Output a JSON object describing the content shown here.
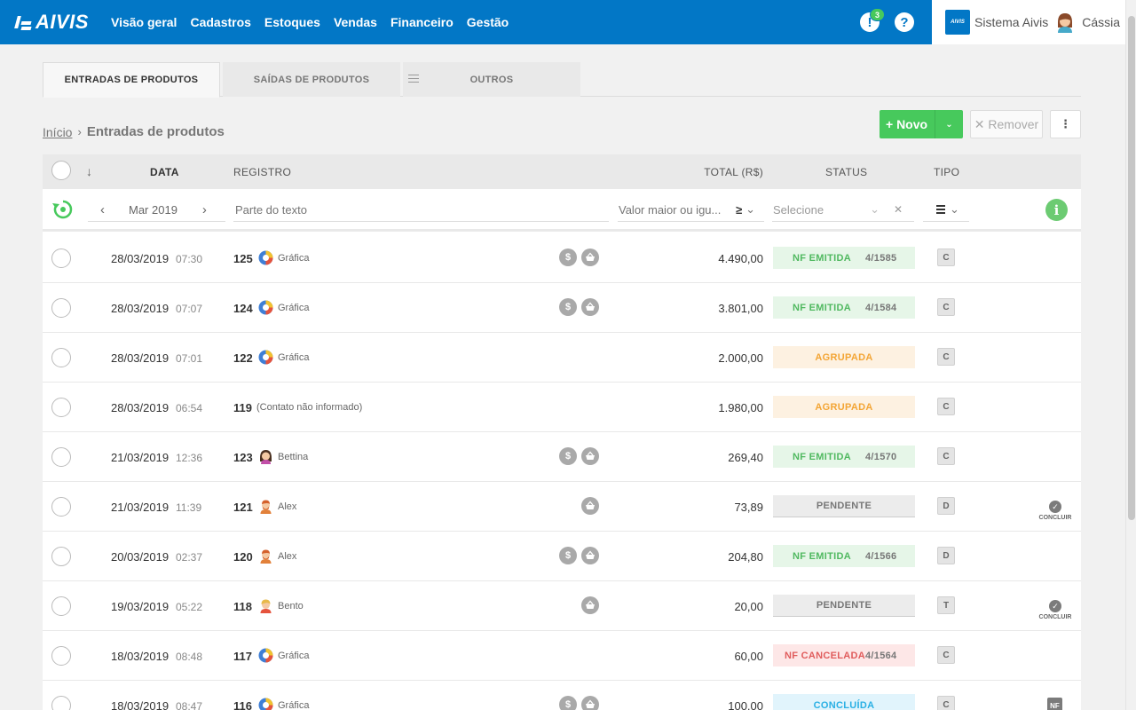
{
  "topbar": {
    "logo": "AIVIS",
    "nav": [
      "Visão geral",
      "Cadastros",
      "Estoques",
      "Vendas",
      "Financeiro",
      "Gestão"
    ],
    "notification_count": "3",
    "help_symbol": "?",
    "alert_symbol": "!",
    "account_logo": "AIVIS",
    "system_name": "Sistema Aivis",
    "user_name": "Cássia"
  },
  "tabs": [
    "ENTRADAS DE PRODUTOS",
    "SAÍDAS DE PRODUTOS",
    "OUTROS"
  ],
  "breadcrumb": {
    "home": "Início",
    "separator": "›",
    "current": "Entradas de produtos"
  },
  "actions": {
    "new_label": "+ Novo",
    "new_caret": "⌄",
    "remove_label": "✕ Remover",
    "more_label": "⋮"
  },
  "columns": {
    "sort_arrow": "↓",
    "date": "DATA",
    "record": "REGISTRO",
    "total": "TOTAL (R$)",
    "status": "STATUS",
    "type": "TIPO"
  },
  "filters": {
    "prev": "‹",
    "month": "Mar 2019",
    "next": "›",
    "text_placeholder": "Parte do texto",
    "value_placeholder": "Valor maior ou igu...",
    "operator": "≥",
    "caret": "⌄",
    "status_placeholder": "Selecione",
    "clear": "✕",
    "info": "i"
  },
  "icons": {
    "dollar": "$",
    "check": "✓",
    "concluir": "CONCLUIR",
    "nf": "NF"
  },
  "rows": [
    {
      "date": "28/03/2019",
      "time": "07:30",
      "number": "125",
      "contact": "Gráfica",
      "contact_icon": "grafica",
      "dollar": true,
      "basket": true,
      "total": "4.490,00",
      "status": "NF EMITIDA",
      "status_type": "emitida",
      "nf": "4/1585",
      "type": "C",
      "action": ""
    },
    {
      "date": "28/03/2019",
      "time": "07:07",
      "number": "124",
      "contact": "Gráfica",
      "contact_icon": "grafica",
      "dollar": true,
      "basket": true,
      "total": "3.801,00",
      "status": "NF EMITIDA",
      "status_type": "emitida",
      "nf": "4/1584",
      "type": "C",
      "action": ""
    },
    {
      "date": "28/03/2019",
      "time": "07:01",
      "number": "122",
      "contact": "Gráfica",
      "contact_icon": "grafica",
      "dollar": false,
      "basket": false,
      "total": "2.000,00",
      "status": "AGRUPADA",
      "status_type": "agrupada",
      "nf": "",
      "type": "C",
      "action": ""
    },
    {
      "date": "28/03/2019",
      "time": "06:54",
      "number": "119",
      "contact": "(Contato não informado)",
      "contact_icon": "",
      "dollar": false,
      "basket": false,
      "total": "1.980,00",
      "status": "AGRUPADA",
      "status_type": "agrupada",
      "nf": "",
      "type": "C",
      "action": ""
    },
    {
      "date": "21/03/2019",
      "time": "12:36",
      "number": "123",
      "contact": "Bettina",
      "contact_icon": "woman",
      "dollar": true,
      "basket": true,
      "total": "269,40",
      "status": "NF EMITIDA",
      "status_type": "emitida",
      "nf": "4/1570",
      "type": "C",
      "action": ""
    },
    {
      "date": "21/03/2019",
      "time": "11:39",
      "number": "121",
      "contact": "Alex",
      "contact_icon": "man-red",
      "dollar": false,
      "basket": true,
      "total": "73,89",
      "status": "PENDENTE",
      "status_type": "pendente",
      "nf": "",
      "type": "D",
      "action": "concluir"
    },
    {
      "date": "20/03/2019",
      "time": "02:37",
      "number": "120",
      "contact": "Alex",
      "contact_icon": "man-red",
      "dollar": true,
      "basket": true,
      "total": "204,80",
      "status": "NF EMITIDA",
      "status_type": "emitida",
      "nf": "4/1566",
      "type": "D",
      "action": ""
    },
    {
      "date": "19/03/2019",
      "time": "05:22",
      "number": "118",
      "contact": "Bento",
      "contact_icon": "man-blond",
      "dollar": false,
      "basket": true,
      "total": "20,00",
      "status": "PENDENTE",
      "status_type": "pendente",
      "nf": "",
      "type": "T",
      "action": "concluir"
    },
    {
      "date": "18/03/2019",
      "time": "08:48",
      "number": "117",
      "contact": "Gráfica",
      "contact_icon": "grafica",
      "dollar": false,
      "basket": false,
      "total": "60,00",
      "status": "NF CANCELADA",
      "status_type": "cancelada",
      "nf": "4/1564",
      "type": "C",
      "action": ""
    },
    {
      "date": "18/03/2019",
      "time": "08:47",
      "number": "116",
      "contact": "Gráfica",
      "contact_icon": "grafica",
      "dollar": true,
      "basket": true,
      "total": "100,00",
      "status": "CONCLUÍDA",
      "status_type": "concluida",
      "nf": "",
      "type": "C",
      "action": "nf"
    }
  ]
}
